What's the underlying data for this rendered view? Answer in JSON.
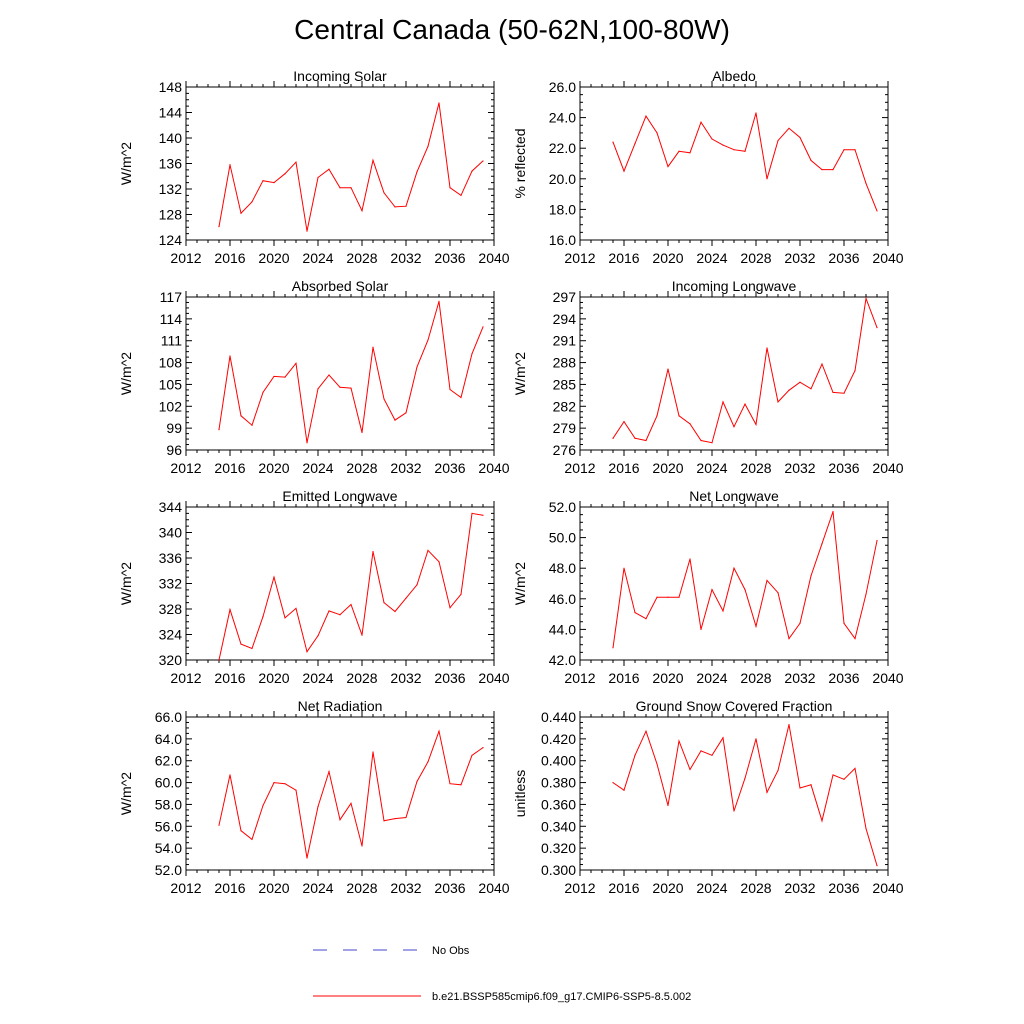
{
  "title": "Central Canada (50-62N,100-80W)",
  "colors": {
    "model": "#ff0000",
    "obs": "#4444cc",
    "axis": "#000000"
  },
  "legend": {
    "obs_label": "No Obs",
    "model_label": "b.e21.BSSP585cmip6.f09_g17.CMIP6-SSP5-8.5.002"
  },
  "chart_data": [
    {
      "type": "line",
      "title": "Incoming Solar",
      "ylabel": "W/m^2",
      "xlim": [
        2012,
        2040
      ],
      "xticks": [
        "2012",
        "2016",
        "2020",
        "2024",
        "2028",
        "2032",
        "2036",
        "2040"
      ],
      "ylim": [
        124,
        148
      ],
      "yticks": [
        "124",
        "128",
        "132",
        "136",
        "140",
        "144",
        "148"
      ],
      "x": [
        2015,
        2016,
        2017,
        2018,
        2019,
        2020,
        2021,
        2022,
        2023,
        2024,
        2025,
        2026,
        2027,
        2028,
        2029,
        2030,
        2031,
        2032,
        2033,
        2034,
        2035,
        2036,
        2037,
        2038,
        2039
      ],
      "series": [
        {
          "values": [
            126.1,
            135.8,
            128.2,
            130.0,
            133.3,
            133.0,
            134.4,
            136.2,
            125.4,
            133.8,
            135.1,
            132.2,
            132.2,
            128.6,
            136.5,
            131.4,
            129.2,
            129.3,
            134.7,
            138.7,
            145.5,
            132.2,
            131.0,
            134.8,
            136.4
          ]
        }
      ]
    },
    {
      "type": "line",
      "title": "Albedo",
      "ylabel": "% reflected",
      "xlim": [
        2012,
        2040
      ],
      "xticks": [
        "2012",
        "2016",
        "2020",
        "2024",
        "2028",
        "2032",
        "2036",
        "2040"
      ],
      "ylim": [
        16,
        26
      ],
      "yticks": [
        "16.0",
        "18.0",
        "20.0",
        "22.0",
        "24.0",
        "26.0"
      ],
      "x": [
        2015,
        2016,
        2017,
        2018,
        2019,
        2020,
        2021,
        2022,
        2023,
        2024,
        2025,
        2026,
        2027,
        2028,
        2029,
        2030,
        2031,
        2032,
        2033,
        2034,
        2035,
        2036,
        2037,
        2038,
        2039
      ],
      "series": [
        {
          "values": [
            22.4,
            20.5,
            22.3,
            24.1,
            23.0,
            20.8,
            21.8,
            21.7,
            23.7,
            22.6,
            22.2,
            21.9,
            21.8,
            24.3,
            20.0,
            22.5,
            23.3,
            22.7,
            21.2,
            20.6,
            20.6,
            21.9,
            21.9,
            19.7,
            17.9
          ]
        }
      ]
    },
    {
      "type": "line",
      "title": "Absorbed Solar",
      "ylabel": "W/m^2",
      "xlim": [
        2012,
        2040
      ],
      "xticks": [
        "2012",
        "2016",
        "2020",
        "2024",
        "2028",
        "2032",
        "2036",
        "2040"
      ],
      "ylim": [
        96,
        117
      ],
      "yticks": [
        "96",
        "99",
        "102",
        "105",
        "108",
        "111",
        "114",
        "117"
      ],
      "x": [
        2015,
        2016,
        2017,
        2018,
        2019,
        2020,
        2021,
        2022,
        2023,
        2024,
        2025,
        2026,
        2027,
        2028,
        2029,
        2030,
        2031,
        2032,
        2033,
        2034,
        2035,
        2036,
        2037,
        2038,
        2039
      ],
      "series": [
        {
          "values": [
            98.8,
            108.9,
            100.7,
            99.4,
            103.9,
            106.1,
            106.0,
            107.9,
            97.0,
            104.4,
            106.3,
            104.6,
            104.5,
            98.4,
            110.1,
            103.0,
            100.1,
            101.1,
            107.4,
            111.1,
            116.4,
            104.3,
            103.2,
            109.2,
            112.9
          ]
        }
      ]
    },
    {
      "type": "line",
      "title": "Incoming Longwave",
      "ylabel": "W/m^2",
      "xlim": [
        2012,
        2040
      ],
      "xticks": [
        "2012",
        "2016",
        "2020",
        "2024",
        "2028",
        "2032",
        "2036",
        "2040"
      ],
      "ylim": [
        276,
        297
      ],
      "yticks": [
        "276",
        "279",
        "282",
        "285",
        "288",
        "291",
        "294",
        "297"
      ],
      "x": [
        2015,
        2016,
        2017,
        2018,
        2019,
        2020,
        2021,
        2022,
        2023,
        2024,
        2025,
        2026,
        2027,
        2028,
        2029,
        2030,
        2031,
        2032,
        2033,
        2034,
        2035,
        2036,
        2037,
        2038,
        2039
      ],
      "series": [
        {
          "values": [
            277.6,
            279.9,
            277.6,
            277.3,
            280.7,
            287.1,
            280.7,
            279.6,
            277.3,
            277.0,
            282.6,
            279.2,
            282.3,
            279.5,
            290.0,
            282.6,
            284.2,
            285.3,
            284.4,
            287.8,
            283.9,
            283.8,
            286.9,
            296.8,
            292.8
          ]
        }
      ]
    },
    {
      "type": "line",
      "title": "Emitted Longwave",
      "ylabel": "W/m^2",
      "xlim": [
        2012,
        2040
      ],
      "xticks": [
        "2012",
        "2016",
        "2020",
        "2024",
        "2028",
        "2032",
        "2036",
        "2040"
      ],
      "ylim": [
        320,
        344
      ],
      "yticks": [
        "320",
        "324",
        "328",
        "332",
        "336",
        "340",
        "344"
      ],
      "x": [
        2015,
        2016,
        2017,
        2018,
        2019,
        2020,
        2021,
        2022,
        2023,
        2024,
        2025,
        2026,
        2027,
        2028,
        2029,
        2030,
        2031,
        2032,
        2033,
        2034,
        2035,
        2036,
        2037,
        2038,
        2039
      ],
      "series": [
        {
          "values": [
            320.0,
            327.9,
            322.5,
            321.8,
            326.8,
            333.0,
            326.6,
            328.1,
            321.3,
            323.8,
            327.7,
            327.1,
            328.7,
            323.9,
            337.0,
            329.0,
            327.6,
            329.7,
            331.8,
            337.2,
            335.4,
            328.2,
            330.3,
            343.0,
            342.7
          ]
        }
      ]
    },
    {
      "type": "line",
      "title": "Net Longwave",
      "ylabel": "W/m^2",
      "xlim": [
        2012,
        2040
      ],
      "xticks": [
        "2012",
        "2016",
        "2020",
        "2024",
        "2028",
        "2032",
        "2036",
        "2040"
      ],
      "ylim": [
        42,
        52
      ],
      "yticks": [
        "42.0",
        "44.0",
        "46.0",
        "48.0",
        "50.0",
        "52.0"
      ],
      "x": [
        2015,
        2016,
        2017,
        2018,
        2019,
        2020,
        2021,
        2022,
        2023,
        2024,
        2025,
        2026,
        2027,
        2028,
        2029,
        2030,
        2031,
        2032,
        2033,
        2034,
        2035,
        2036,
        2037,
        2038,
        2039
      ],
      "series": [
        {
          "values": [
            42.8,
            48.0,
            45.1,
            44.7,
            46.1,
            46.1,
            46.1,
            48.6,
            44.0,
            46.6,
            45.2,
            48.0,
            46.6,
            44.2,
            47.2,
            46.4,
            43.4,
            44.4,
            47.5,
            49.6,
            51.7,
            44.4,
            43.4,
            46.3,
            49.8
          ]
        }
      ]
    },
    {
      "type": "line",
      "title": "Net Radiation",
      "ylabel": "W/m^2",
      "xlim": [
        2012,
        2040
      ],
      "xticks": [
        "2012",
        "2016",
        "2020",
        "2024",
        "2028",
        "2032",
        "2036",
        "2040"
      ],
      "ylim": [
        52,
        66
      ],
      "yticks": [
        "52.0",
        "54.0",
        "56.0",
        "58.0",
        "60.0",
        "62.0",
        "64.0",
        "66.0"
      ],
      "x": [
        2015,
        2016,
        2017,
        2018,
        2019,
        2020,
        2021,
        2022,
        2023,
        2024,
        2025,
        2026,
        2027,
        2028,
        2029,
        2030,
        2031,
        2032,
        2033,
        2034,
        2035,
        2036,
        2037,
        2038,
        2039
      ],
      "series": [
        {
          "values": [
            56.1,
            60.7,
            55.6,
            54.8,
            57.9,
            60.0,
            59.9,
            59.3,
            53.1,
            57.8,
            61.0,
            56.6,
            58.1,
            54.2,
            62.8,
            56.5,
            56.7,
            56.8,
            60.1,
            61.9,
            64.7,
            59.9,
            59.8,
            62.5,
            63.2
          ]
        }
      ]
    },
    {
      "type": "line",
      "title": "Ground Snow Covered Fraction",
      "ylabel": "unitless",
      "xlim": [
        2012,
        2040
      ],
      "xticks": [
        "2012",
        "2016",
        "2020",
        "2024",
        "2028",
        "2032",
        "2036",
        "2040"
      ],
      "ylim": [
        0.3,
        0.44
      ],
      "yticks": [
        "0.300",
        "0.320",
        "0.340",
        "0.360",
        "0.380",
        "0.400",
        "0.420",
        "0.440"
      ],
      "x": [
        2015,
        2016,
        2017,
        2018,
        2019,
        2020,
        2021,
        2022,
        2023,
        2024,
        2025,
        2026,
        2027,
        2028,
        2029,
        2030,
        2031,
        2032,
        2033,
        2034,
        2035,
        2036,
        2037,
        2038,
        2039
      ],
      "series": [
        {
          "values": [
            0.38,
            0.373,
            0.405,
            0.427,
            0.397,
            0.359,
            0.418,
            0.392,
            0.409,
            0.405,
            0.421,
            0.354,
            0.384,
            0.42,
            0.371,
            0.391,
            0.433,
            0.375,
            0.378,
            0.345,
            0.387,
            0.383,
            0.393,
            0.338,
            0.304
          ]
        }
      ]
    }
  ]
}
